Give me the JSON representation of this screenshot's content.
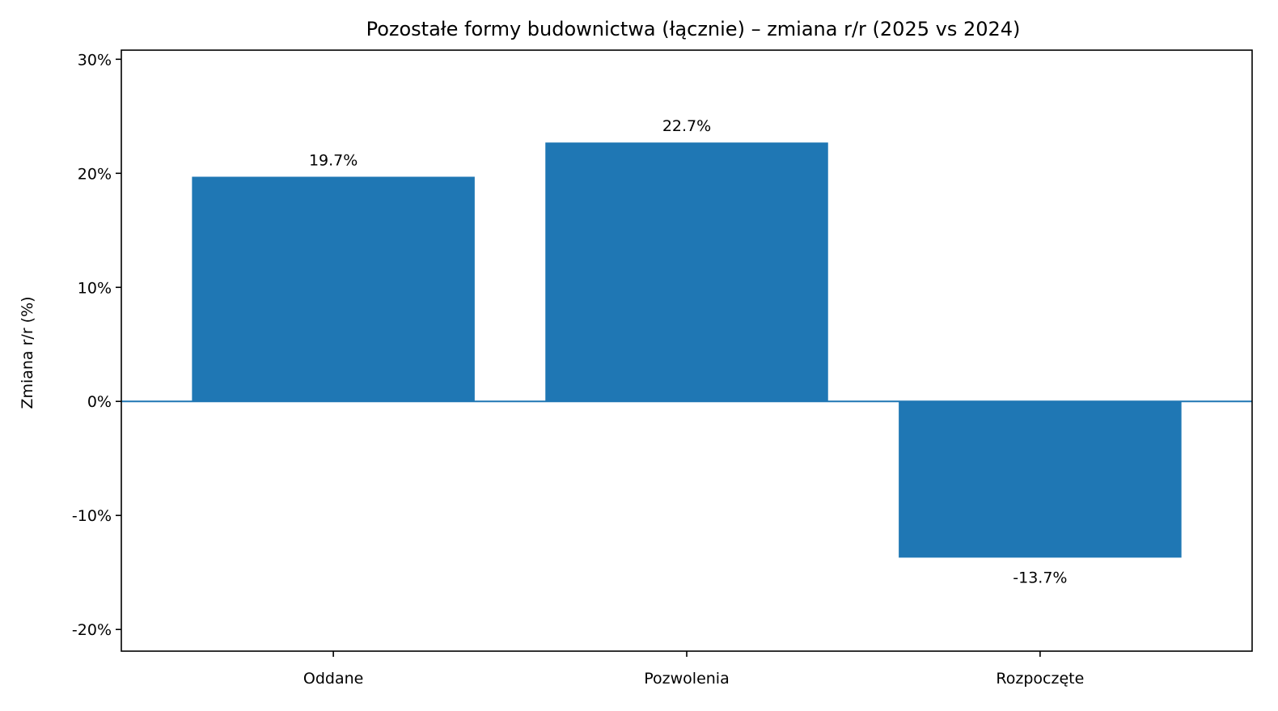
{
  "chart_data": {
    "type": "bar",
    "title": "Pozostałe formy budownictwa (łącznie) – zmiana r/r (2025 vs 2024)",
    "xlabel": "",
    "ylabel": "Zmiana r/r (%)",
    "categories": [
      "Oddane",
      "Pozwolenia",
      "Rozpoczęte"
    ],
    "values": [
      19.7,
      22.7,
      -13.7
    ],
    "value_labels": [
      "19.7%",
      "22.7%",
      "-13.7%"
    ],
    "ylim": [
      -21.9,
      30.8
    ],
    "yticks": [
      -20,
      -10,
      0,
      10,
      20,
      30
    ],
    "ytick_labels": [
      "-20%",
      "-10%",
      "0%",
      "10%",
      "20%",
      "30%"
    ],
    "bar_color": "#1f77b4",
    "zero_line_color": "#1f77b4",
    "grid": false,
    "legend": "none"
  }
}
